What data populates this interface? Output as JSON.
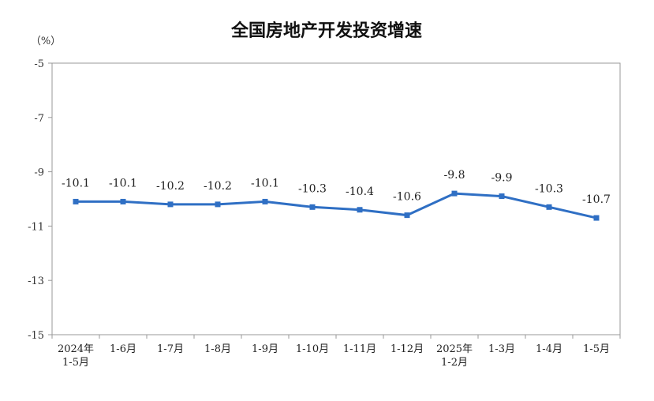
{
  "chart_data": {
    "type": "line",
    "title": "全国房地产开发投资增速",
    "unit": "（%）",
    "categories": [
      [
        "2024年",
        "1-5月"
      ],
      [
        "1-6月"
      ],
      [
        "1-7月"
      ],
      [
        "1-8月"
      ],
      [
        "1-9月"
      ],
      [
        "1-10月"
      ],
      [
        "1-11月"
      ],
      [
        "1-12月"
      ],
      [
        "2025年",
        "1-2月"
      ],
      [
        "1-3月"
      ],
      [
        "1-4月"
      ],
      [
        "1-5月"
      ]
    ],
    "values": [
      -10.1,
      -10.1,
      -10.2,
      -10.2,
      -10.1,
      -10.3,
      -10.4,
      -10.6,
      -9.8,
      -9.9,
      -10.3,
      -10.7
    ],
    "data_labels": [
      "-10.1",
      "-10.1",
      "-10.2",
      "-10.2",
      "-10.1",
      "-10.3",
      "-10.4",
      "-10.6",
      "-9.8",
      "-9.9",
      "-10.3",
      "-10.7"
    ],
    "ylim": [
      -15,
      -5
    ],
    "yticks": [
      -5,
      -7,
      -9,
      -11,
      -13,
      -15
    ],
    "ytick_labels": [
      "-5",
      "-7",
      "-9",
      "-11",
      "-13",
      "-15"
    ],
    "grid": false,
    "line_color": "#2f6fc4",
    "axis_color": "#999999"
  }
}
